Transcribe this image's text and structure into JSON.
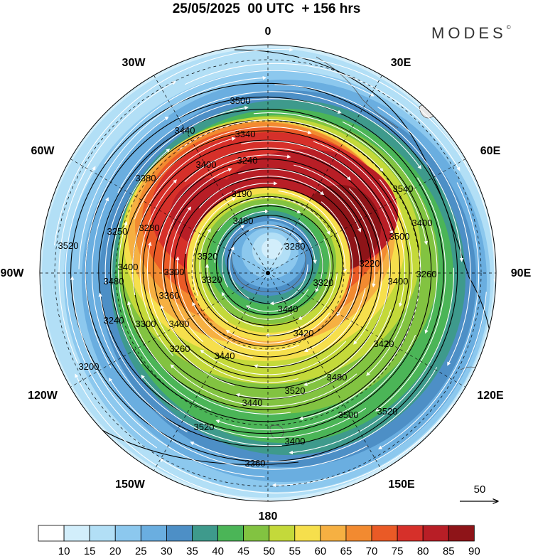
{
  "title": "25/05/2025  00 UTC  + 156 hrs",
  "brand": "MODES",
  "brand_mark": "©",
  "map": {
    "projection": "polar-stereographic",
    "hemisphere": "south",
    "longitude_labels": [
      "0",
      "30E",
      "60E",
      "90E",
      "120E",
      "150E",
      "180",
      "150W",
      "120W",
      "90W",
      "60W",
      "30W"
    ],
    "contour_labels": [
      "3500",
      "3440",
      "3340",
      "3240",
      "3190",
      "3480",
      "3380",
      "3400",
      "3280",
      "3520",
      "3520",
      "3540",
      "3400",
      "3500",
      "3400",
      "3300",
      "3280",
      "3260",
      "3220",
      "3360",
      "3320",
      "3440",
      "3420",
      "3420",
      "3480",
      "3520",
      "3440",
      "3500",
      "3520",
      "3520",
      "3400",
      "3360",
      "3200",
      "3260",
      "3440",
      "3320",
      "3400",
      "3480",
      "3240",
      "3300",
      "3250",
      "3400"
    ],
    "reference_vector_label": "50"
  },
  "colorbar": {
    "labels": [
      "10",
      "15",
      "20",
      "25",
      "30",
      "35",
      "40",
      "45",
      "50",
      "55",
      "60",
      "65",
      "70",
      "75",
      "80",
      "85",
      "90"
    ],
    "colors": [
      "#ffffff",
      "#d2eefb",
      "#b2dff6",
      "#8cc8ee",
      "#6aaee0",
      "#4d8fc6",
      "#3e9a8c",
      "#4bb557",
      "#82c341",
      "#c4d93a",
      "#f6df4c",
      "#f6b042",
      "#f28a30",
      "#ea5a26",
      "#d6302a",
      "#b81e26",
      "#8e1418"
    ]
  }
}
